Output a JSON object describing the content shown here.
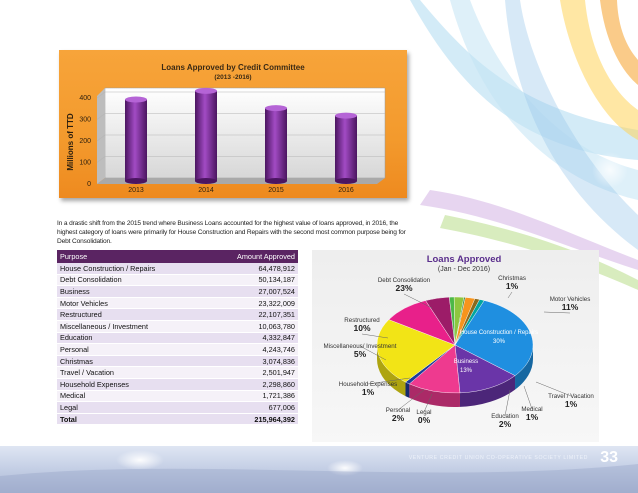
{
  "bar_chart": {
    "chart_data": {
      "type": "bar",
      "title": "Loans Approved by Credit Committee",
      "subtitle": "(2013 -2016)",
      "ylabel": "Millions of TTD",
      "categories": [
        "2013",
        "2014",
        "2015",
        "2016"
      ],
      "values": [
        365,
        405,
        325,
        290
      ],
      "ylim": [
        0,
        400
      ],
      "yticks": [
        "0",
        "100",
        "200",
        "300",
        "400"
      ],
      "grid": true
    },
    "colors": {
      "panel": "#f39a2d",
      "bar": "#7a2e96"
    }
  },
  "intro_text": "In a drastic shift from the 2015 trend where Business Loans accounted for the highest value of loans approved, in 2016, the highest category of loans were primarily for House Construction and Repairs with the second most common purpose being for Debt Consolidation.",
  "table": {
    "headers": [
      "Purpose",
      "Amount Approved"
    ],
    "rows": [
      [
        "House Construction / Repairs",
        "64,478,912"
      ],
      [
        "Debt Consolidation",
        "50,134,187"
      ],
      [
        "Business",
        "27,007,524"
      ],
      [
        "Motor Vehicles",
        "23,322,009"
      ],
      [
        "Restructured",
        "22,107,351"
      ],
      [
        "Miscellaneous / Investment",
        "10,063,780"
      ],
      [
        "Education",
        "4,332,847"
      ],
      [
        "Personal",
        "4,243,746"
      ],
      [
        "Christmas",
        "3,074,836"
      ],
      [
        "Travel / Vacation",
        "2,501,947"
      ],
      [
        "Household Expenses",
        "2,298,860"
      ],
      [
        "Medical",
        "1,721,386"
      ],
      [
        "Legal",
        "677,006"
      ]
    ],
    "total": [
      "Total",
      "215,964,392"
    ]
  },
  "pie_chart": {
    "chart_data": {
      "type": "pie",
      "title": "Loans Approved",
      "subtitle": "(Jan - Dec 2016)",
      "slices": [
        {
          "label": "House Construction / Repairs",
          "percent": "30%",
          "value": 30,
          "color": "#1f8fe0"
        },
        {
          "label": "Business",
          "percent": "13%",
          "value": 13,
          "color": "#6a35a8"
        },
        {
          "label": "Motor Vehicles",
          "percent": "11%",
          "value": 11,
          "color": "#ee3a8f"
        },
        {
          "label": "Christmas",
          "percent": "1%",
          "value": 1,
          "color": "#1e3c9a"
        },
        {
          "label": "Debt Consolidation",
          "percent": "23%",
          "value": 23,
          "color": "#f2e416"
        },
        {
          "label": "Restructured",
          "percent": "10%",
          "value": 10,
          "color": "#e8208a"
        },
        {
          "label": "Miscellaneous/ Investment",
          "percent": "5%",
          "value": 5,
          "color": "#9c1c68"
        },
        {
          "label": "Household Expenses",
          "percent": "1%",
          "value": 1,
          "color": "#4cb848"
        },
        {
          "label": "Personal",
          "percent": "2%",
          "value": 2,
          "color": "#8ec63f"
        },
        {
          "label": "Legal",
          "percent": "0%",
          "value": 0.3,
          "color": "#2e7d32"
        },
        {
          "label": "Education",
          "percent": "2%",
          "value": 2,
          "color": "#f7941d"
        },
        {
          "label": "Medical",
          "percent": "1%",
          "value": 1,
          "color": "#8a6a1f"
        },
        {
          "label": "Travel / Vacation",
          "percent": "1%",
          "value": 1,
          "color": "#00a6a0"
        }
      ]
    }
  },
  "footer": {
    "text": "VENTURE CREDIT UNION CO-OPERATIVE SOCIETY LIMITED",
    "page_number": "33"
  }
}
